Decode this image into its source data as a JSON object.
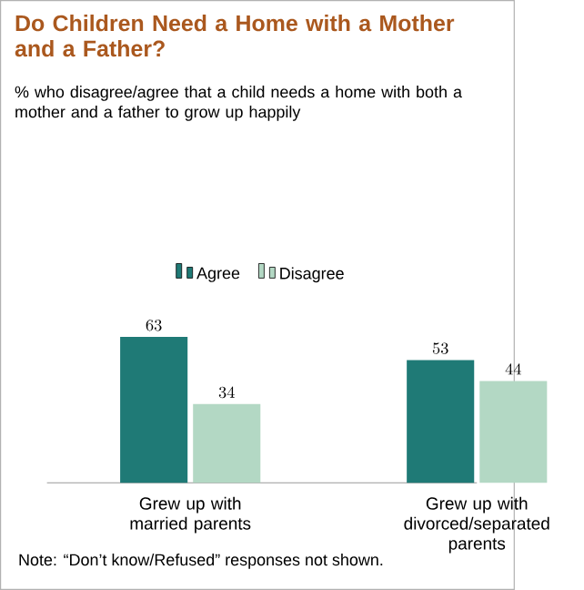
{
  "chart_data": {
    "type": "bar",
    "title": "Do Children Need a Home with a Mother and a Father?",
    "subtitle": "% who disagree/agree that a child needs a home with both a mother and a father to grow up happily",
    "categories": [
      "Grew up with married parents",
      "Grew up with divorced/separated parents"
    ],
    "series": [
      {
        "name": "Agree",
        "color": "#1f7a76",
        "values": [
          63,
          53
        ]
      },
      {
        "name": "Disagree",
        "color": "#b3d8c4",
        "values": [
          34,
          44
        ]
      }
    ],
    "data_labels": true,
    "legend": "top",
    "annotations": [
      "Note: “Don’t know/Refused” responses not shown."
    ]
  }
}
